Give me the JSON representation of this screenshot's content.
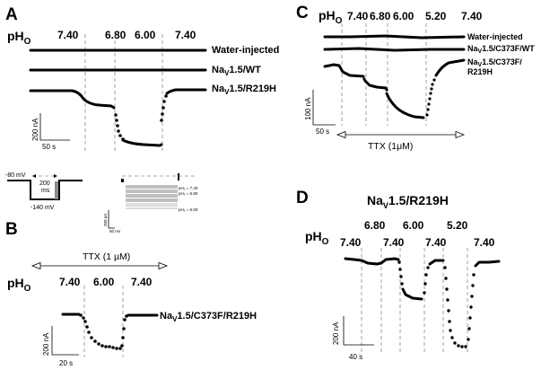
{
  "panels": {
    "A": {
      "letter": "A",
      "ph_main": "pH",
      "ph_sub": "O",
      "ph_values": [
        "7.40",
        "6.80",
        "6.00",
        "7.40"
      ],
      "traces": [
        "Water-injected",
        "Nav1.5/WT",
        "Nav1.5/R219H"
      ],
      "trace_label_parts": [
        {
          "pre": "Water-injected",
          "sub": "",
          "post": ""
        },
        {
          "pre": "Na",
          "sub": "V",
          "post": "1.5/WT"
        },
        {
          "pre": "Na",
          "sub": "V",
          "post": "1.5/R219H"
        }
      ],
      "scale_y": "200 nA",
      "scale_x": "50 s",
      "protocol": {
        "hold": "-80 mV",
        "step": "-140 mV",
        "duration_top": "200",
        "duration_bottom": "ms"
      },
      "inset": {
        "scale_y": "200 nA",
        "scale_x": "50 ms",
        "labels": [
          "pHₒ = 7.40",
          "pHₒ = 6.80",
          "pHₒ = 6.00"
        ]
      }
    },
    "B": {
      "letter": "B",
      "ph_main": "pH",
      "ph_sub": "O",
      "ph_values": [
        "7.40",
        "6.00",
        "7.40"
      ],
      "ttx": "TTX (1 µM)",
      "trace_label_pre": "Na",
      "trace_label_sub": "V",
      "trace_label_post": "1.5/C373F/R219H",
      "scale_y": "200 nA",
      "scale_x": "20 s"
    },
    "C": {
      "letter": "C",
      "ph_main": "pH",
      "ph_sub": "O",
      "ph_values": [
        "7.40",
        "6.80",
        "6.00",
        "5.20",
        "7.40"
      ],
      "trace_label_parts": [
        {
          "pre": "Water-injected",
          "sub": "",
          "post": ""
        },
        {
          "pre": "Na",
          "sub": "V",
          "post": "1.5/C373F/WT"
        },
        {
          "pre": "Na",
          "sub": "V",
          "post": "1.5/C373F/"
        }
      ],
      "trace_label_extra": "R219H",
      "ttx": "TTX (1μM)",
      "scale_y": "100 nA",
      "scale_x": "50 s"
    },
    "D": {
      "letter": "D",
      "title_pre": "Na",
      "title_sub": "V",
      "title_post": "1.5/R219H",
      "ph_main": "pH",
      "ph_sub": "O",
      "ph_values": [
        "7.40",
        "6.80",
        "7.40",
        "6.00",
        "7.40",
        "5.20",
        "7.40"
      ],
      "scale_y": "200 nA",
      "scale_x": "40 s"
    }
  },
  "colors": {
    "ink": "#000000",
    "dash": "#8a8a8a",
    "background": "#ffffff"
  }
}
